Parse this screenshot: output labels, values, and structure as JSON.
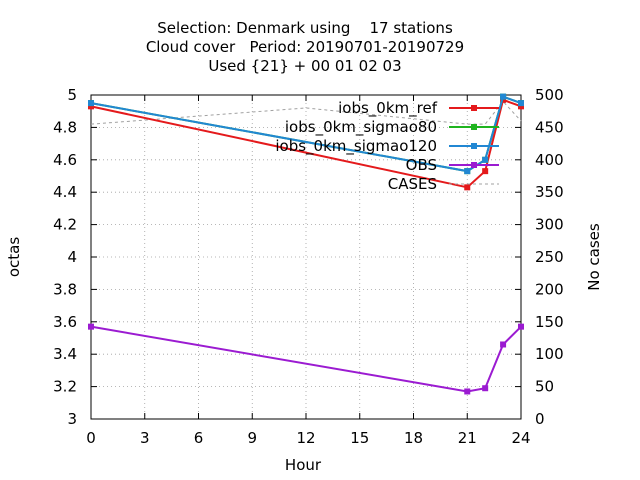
{
  "chart_data": {
    "type": "line",
    "title_lines": [
      "Selection: Denmark using    17 stations",
      "Cloud cover   Period: 20190701-20190729",
      "Used {21} + 00 01 02 03"
    ],
    "xlabel": "Hour",
    "ylabel": "octas",
    "y2label": "No cases",
    "xlim": [
      0,
      24
    ],
    "ylim": [
      3,
      5
    ],
    "y2lim": [
      0,
      500
    ],
    "xticks": [
      0,
      3,
      6,
      9,
      12,
      15,
      18,
      21,
      24
    ],
    "yticks": [
      3,
      3.2,
      3.4,
      3.6,
      3.8,
      4,
      4.2,
      4.4,
      4.6,
      4.8,
      5
    ],
    "y2ticks": [
      0,
      50,
      100,
      150,
      200,
      250,
      300,
      350,
      400,
      450,
      500
    ],
    "xtick_labels": [
      "0",
      "3",
      "6",
      "9",
      "12",
      "15",
      "18",
      "21",
      "24"
    ],
    "ytick_labels": [
      "3",
      "3.2",
      "3.4",
      "3.6",
      "3.8",
      "4",
      "4.2",
      "4.4",
      "4.6",
      "4.8",
      "5"
    ],
    "y2tick_labels": [
      "0",
      "50",
      "100",
      "150",
      "200",
      "250",
      "300",
      "350",
      "400",
      "450",
      "500"
    ],
    "grid": true,
    "legend_position": "top-right",
    "series": [
      {
        "name": "iobs_0km_ref",
        "color": "#e41a1c",
        "axis": "left",
        "x": [
          0,
          21,
          22,
          23,
          24
        ],
        "y": [
          4.93,
          4.43,
          4.53,
          4.97,
          4.93
        ]
      },
      {
        "name": "iobs_0km_sigmao80",
        "color": "#1fb41f",
        "axis": "left",
        "x": [
          0,
          21,
          22,
          23,
          24
        ],
        "y": [
          4.95,
          4.53,
          4.6,
          4.99,
          4.95
        ]
      },
      {
        "name": "iobs_0km_sigmao120",
        "color": "#2187d3",
        "axis": "left",
        "x": [
          0,
          21,
          22,
          23,
          24
        ],
        "y": [
          4.95,
          4.53,
          4.6,
          4.99,
          4.95
        ]
      },
      {
        "name": "OBS",
        "color": "#9b1bd1",
        "axis": "left",
        "x": [
          0,
          21,
          22,
          23,
          24
        ],
        "y": [
          3.57,
          3.17,
          3.19,
          3.46,
          3.57
        ]
      },
      {
        "name": "CASES",
        "color": "#a0a0a0",
        "axis": "right",
        "dashed": true,
        "x": [
          0,
          12,
          21,
          22,
          23,
          24
        ],
        "y": [
          455,
          480,
          455,
          455,
          490,
          460
        ]
      }
    ]
  }
}
